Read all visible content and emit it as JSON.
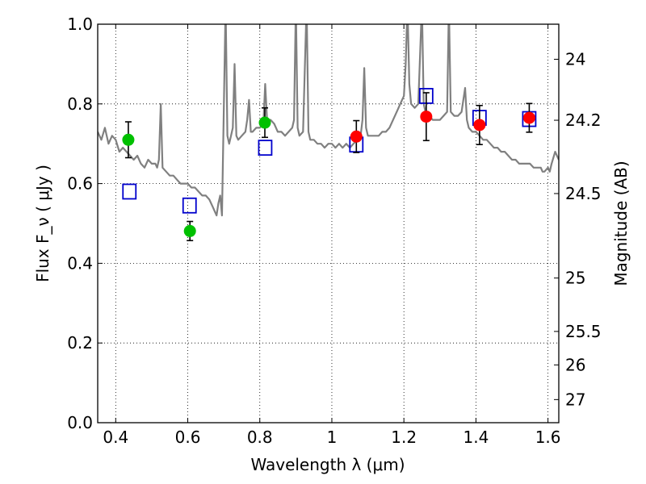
{
  "chart_data": {
    "type": "scatter",
    "xlabel": "Wavelength  λ (μm)",
    "ylabel": "Flux  F_ν  ( μJy )",
    "ylabel_right": "Magnitude (AB)",
    "xlim": [
      0.35,
      1.63
    ],
    "ylim": [
      0.0,
      1.0
    ],
    "grid": true,
    "x_ticks": [
      0.4,
      0.6,
      0.8,
      1.0,
      1.2,
      1.4,
      1.6
    ],
    "x_tick_labels": [
      "0.4",
      "0.6",
      "0.8",
      "1",
      "1.2",
      "1.4",
      "1.6"
    ],
    "y_ticks": [
      0.0,
      0.2,
      0.4,
      0.6,
      0.8,
      1.0
    ],
    "y_tick_labels": [
      "0.0",
      "0.2",
      "0.4",
      "0.6",
      "0.8",
      "1.0"
    ],
    "right_ticks": [
      {
        "label": "24",
        "flux": 0.912
      },
      {
        "label": "24.2",
        "flux": 0.759
      },
      {
        "label": "24.5",
        "flux": 0.575
      },
      {
        "label": "25",
        "flux": 0.363
      },
      {
        "label": "25.5",
        "flux": 0.229
      },
      {
        "label": "26",
        "flux": 0.145
      },
      {
        "label": "27",
        "flux": 0.058
      }
    ],
    "series": [
      {
        "marker": "circle",
        "color": "#00c000",
        "points": [
          {
            "x": 0.435,
            "y": 0.71,
            "err": 0.045
          },
          {
            "x": 0.606,
            "y": 0.481,
            "err": 0.024
          },
          {
            "x": 0.814,
            "y": 0.753,
            "err": 0.037
          }
        ]
      },
      {
        "marker": "circle",
        "color": "#ff0000",
        "points": [
          {
            "x": 1.068,
            "y": 0.718,
            "err": 0.04
          },
          {
            "x": 1.262,
            "y": 0.768,
            "err": 0.06
          },
          {
            "x": 1.41,
            "y": 0.747,
            "err": 0.049
          },
          {
            "x": 1.548,
            "y": 0.765,
            "err": 0.036
          }
        ]
      },
      {
        "marker": "open-square",
        "color": "#0000cc",
        "points": [
          {
            "x": 0.438,
            "y": 0.58
          },
          {
            "x": 0.605,
            "y": 0.545
          },
          {
            "x": 0.815,
            "y": 0.69
          },
          {
            "x": 1.068,
            "y": 0.698
          },
          {
            "x": 1.262,
            "y": 0.82
          },
          {
            "x": 1.41,
            "y": 0.765
          },
          {
            "x": 1.548,
            "y": 0.762
          }
        ]
      },
      {
        "marker": "line",
        "color": "#808080",
        "points": [
          [
            0.35,
            0.73
          ],
          [
            0.36,
            0.71
          ],
          [
            0.37,
            0.74
          ],
          [
            0.38,
            0.7
          ],
          [
            0.39,
            0.72
          ],
          [
            0.4,
            0.71
          ],
          [
            0.41,
            0.68
          ],
          [
            0.42,
            0.69
          ],
          [
            0.43,
            0.68
          ],
          [
            0.44,
            0.67
          ],
          [
            0.45,
            0.66
          ],
          [
            0.46,
            0.67
          ],
          [
            0.47,
            0.65
          ],
          [
            0.48,
            0.64
          ],
          [
            0.49,
            0.66
          ],
          [
            0.5,
            0.65
          ],
          [
            0.51,
            0.65
          ],
          [
            0.515,
            0.64
          ],
          [
            0.52,
            0.66
          ],
          [
            0.525,
            0.8
          ],
          [
            0.53,
            0.64
          ],
          [
            0.54,
            0.63
          ],
          [
            0.55,
            0.62
          ],
          [
            0.56,
            0.62
          ],
          [
            0.57,
            0.61
          ],
          [
            0.58,
            0.6
          ],
          [
            0.59,
            0.6
          ],
          [
            0.6,
            0.6
          ],
          [
            0.61,
            0.59
          ],
          [
            0.62,
            0.59
          ],
          [
            0.63,
            0.58
          ],
          [
            0.64,
            0.57
          ],
          [
            0.65,
            0.57
          ],
          [
            0.66,
            0.56
          ],
          [
            0.67,
            0.54
          ],
          [
            0.675,
            0.53
          ],
          [
            0.68,
            0.52
          ],
          [
            0.685,
            0.55
          ],
          [
            0.69,
            0.57
          ],
          [
            0.695,
            0.52
          ],
          [
            0.7,
            0.78
          ],
          [
            0.705,
            1.05
          ],
          [
            0.71,
            0.72
          ],
          [
            0.715,
            0.7
          ],
          [
            0.72,
            0.72
          ],
          [
            0.725,
            0.74
          ],
          [
            0.73,
            0.9
          ],
          [
            0.735,
            0.72
          ],
          [
            0.74,
            0.71
          ],
          [
            0.75,
            0.72
          ],
          [
            0.76,
            0.73
          ],
          [
            0.765,
            0.76
          ],
          [
            0.77,
            0.81
          ],
          [
            0.775,
            0.73
          ],
          [
            0.78,
            0.73
          ],
          [
            0.79,
            0.74
          ],
          [
            0.8,
            0.74
          ],
          [
            0.81,
            0.75
          ],
          [
            0.815,
            0.85
          ],
          [
            0.82,
            0.76
          ],
          [
            0.83,
            0.76
          ],
          [
            0.84,
            0.75
          ],
          [
            0.85,
            0.73
          ],
          [
            0.86,
            0.73
          ],
          [
            0.87,
            0.72
          ],
          [
            0.88,
            0.73
          ],
          [
            0.89,
            0.74
          ],
          [
            0.895,
            0.76
          ],
          [
            0.9,
            1.05
          ],
          [
            0.905,
            0.74
          ],
          [
            0.91,
            0.72
          ],
          [
            0.92,
            0.73
          ],
          [
            0.93,
            1.05
          ],
          [
            0.935,
            0.73
          ],
          [
            0.94,
            0.71
          ],
          [
            0.95,
            0.71
          ],
          [
            0.96,
            0.7
          ],
          [
            0.97,
            0.7
          ],
          [
            0.98,
            0.69
          ],
          [
            0.99,
            0.7
          ],
          [
            1.0,
            0.7
          ],
          [
            1.01,
            0.69
          ],
          [
            1.02,
            0.7
          ],
          [
            1.03,
            0.69
          ],
          [
            1.04,
            0.7
          ],
          [
            1.05,
            0.69
          ],
          [
            1.06,
            0.7
          ],
          [
            1.07,
            0.71
          ],
          [
            1.08,
            0.72
          ],
          [
            1.085,
            0.76
          ],
          [
            1.09,
            0.89
          ],
          [
            1.095,
            0.74
          ],
          [
            1.1,
            0.72
          ],
          [
            1.11,
            0.72
          ],
          [
            1.12,
            0.72
          ],
          [
            1.13,
            0.72
          ],
          [
            1.14,
            0.73
          ],
          [
            1.15,
            0.73
          ],
          [
            1.16,
            0.74
          ],
          [
            1.17,
            0.76
          ],
          [
            1.18,
            0.78
          ],
          [
            1.19,
            0.8
          ],
          [
            1.2,
            0.82
          ],
          [
            1.205,
            0.9
          ],
          [
            1.21,
            1.05
          ],
          [
            1.215,
            0.85
          ],
          [
            1.22,
            0.8
          ],
          [
            1.23,
            0.79
          ],
          [
            1.24,
            0.8
          ],
          [
            1.25,
            1.05
          ],
          [
            1.255,
            0.8
          ],
          [
            1.26,
            0.78
          ],
          [
            1.27,
            0.77
          ],
          [
            1.28,
            0.76
          ],
          [
            1.29,
            0.76
          ],
          [
            1.3,
            0.76
          ],
          [
            1.31,
            0.77
          ],
          [
            1.32,
            0.78
          ],
          [
            1.325,
            1.05
          ],
          [
            1.33,
            0.78
          ],
          [
            1.34,
            0.77
          ],
          [
            1.35,
            0.77
          ],
          [
            1.36,
            0.78
          ],
          [
            1.37,
            0.84
          ],
          [
            1.375,
            0.76
          ],
          [
            1.38,
            0.74
          ],
          [
            1.39,
            0.73
          ],
          [
            1.4,
            0.73
          ],
          [
            1.41,
            0.72
          ],
          [
            1.42,
            0.71
          ],
          [
            1.43,
            0.71
          ],
          [
            1.44,
            0.7
          ],
          [
            1.45,
            0.69
          ],
          [
            1.46,
            0.69
          ],
          [
            1.47,
            0.68
          ],
          [
            1.48,
            0.68
          ],
          [
            1.49,
            0.67
          ],
          [
            1.5,
            0.66
          ],
          [
            1.51,
            0.66
          ],
          [
            1.52,
            0.65
          ],
          [
            1.53,
            0.65
          ],
          [
            1.54,
            0.65
          ],
          [
            1.55,
            0.65
          ],
          [
            1.56,
            0.64
          ],
          [
            1.57,
            0.64
          ],
          [
            1.58,
            0.64
          ],
          [
            1.585,
            0.63
          ],
          [
            1.59,
            0.63
          ],
          [
            1.6,
            0.64
          ],
          [
            1.605,
            0.63
          ],
          [
            1.61,
            0.65
          ],
          [
            1.62,
            0.68
          ],
          [
            1.63,
            0.66
          ]
        ]
      }
    ]
  }
}
